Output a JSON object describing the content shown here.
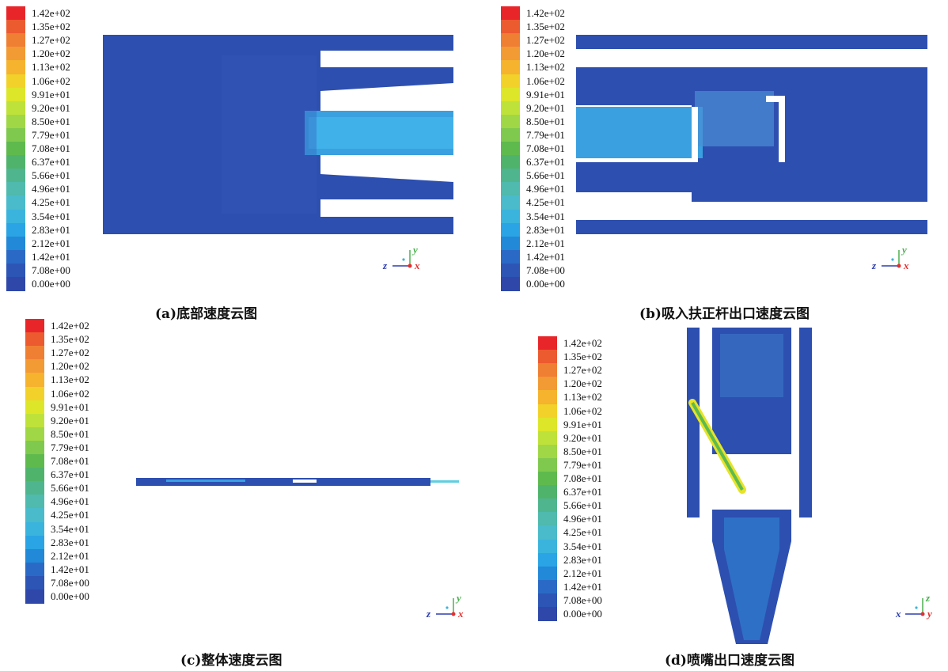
{
  "legend": {
    "labels": [
      "1.42e+02",
      "1.35e+02",
      "1.27e+02",
      "1.20e+02",
      "1.13e+02",
      "1.06e+02",
      "9.91e+01",
      "9.20e+01",
      "8.50e+01",
      "7.79e+01",
      "7.08e+01",
      "6.37e+01",
      "5.66e+01",
      "4.96e+01",
      "4.25e+01",
      "3.54e+01",
      "2.83e+01",
      "2.12e+01",
      "1.42e+01",
      "7.08e+00",
      "0.00e+00"
    ],
    "colors": [
      "#e8262a",
      "#ec5a2f",
      "#ef7f33",
      "#f29a34",
      "#f5b32e",
      "#f2d22a",
      "#dde629",
      "#bfe23a",
      "#a0d746",
      "#80c94f",
      "#5fba4e",
      "#4fb36c",
      "#4fb58e",
      "#4fbaad",
      "#49bbca",
      "#3bb4dd",
      "#2aa4e4",
      "#2288d8",
      "#2a6ac6",
      "#2d55b6",
      "#2e47a8"
    ]
  },
  "panels": {
    "a": {
      "caption": "(a)底部速度云图",
      "axes": {
        "up": "y",
        "left": "z",
        "right": "x"
      }
    },
    "b": {
      "caption": "(b)吸入扶正杆出口速度云图",
      "axes": {
        "up": "y",
        "left": "z",
        "right": "x"
      }
    },
    "c": {
      "caption": "(c)整体速度云图",
      "axes": {
        "up": "y",
        "left": "z",
        "right": "x"
      }
    },
    "d": {
      "caption": "(d)喷嘴出口速度云图",
      "axes": {
        "up": "z",
        "left": "x",
        "right": "y"
      }
    }
  }
}
